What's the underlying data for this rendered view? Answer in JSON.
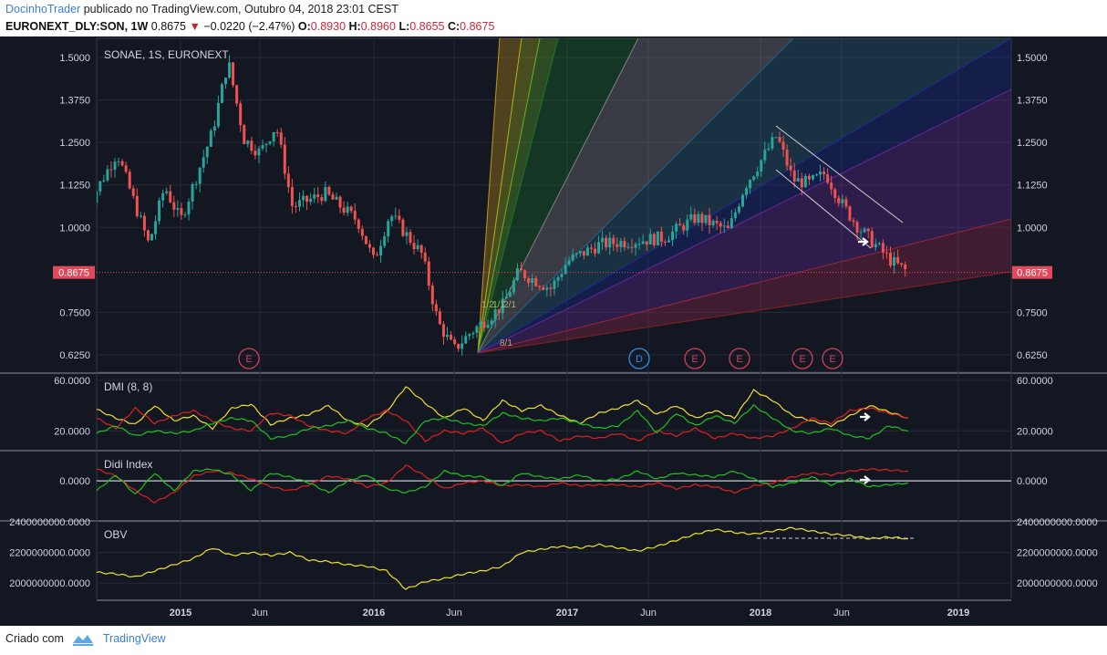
{
  "header": {
    "author": "DocinhoTrader",
    "published": "publicado no TradingView.com, Outubro 04, 2018 23:01 CEST",
    "symbol": "EURONEXT_DLY:SON, 1W",
    "last": "0.8675",
    "change": "−0.0220 (−2.47%)",
    "o_label": "O:",
    "o_val": "0.8930",
    "h_label": "H:",
    "h_val": "0.8960",
    "l_label": "L:",
    "l_val": "0.8655",
    "c_label": "C:",
    "c_val": "0.8675"
  },
  "footer": {
    "created": "Criado com",
    "brand": "TradingView"
  },
  "colors": {
    "background": "#131722",
    "up": "#26a69a",
    "down": "#ef5350",
    "price_tag": "#e04a5a",
    "dmi_plus": "#20c020",
    "dmi_minus": "#e02020",
    "adx": "#f0e030",
    "obv": "#f0e030"
  },
  "chart_data": [
    {
      "type": "candlestick",
      "title": "SONAE, 1S, EURONEXT",
      "x_ticks": [
        "2015",
        "Jun",
        "2016",
        "Jun",
        "2017",
        "Jun",
        "2018",
        "Jun",
        "2019"
      ],
      "y_ticks": [
        "1.5000",
        "1.3750",
        "1.2500",
        "1.1250",
        "1.0000",
        "0.7500",
        "0.6250"
      ],
      "ylim": [
        0.59,
        1.54
      ],
      "last_price_label": "0.8675",
      "price_path": [
        [
          "2014-07",
          1.05
        ],
        [
          "2014-09",
          1.22
        ],
        [
          "2014-11",
          0.95
        ],
        [
          "2014-12",
          1.12
        ],
        [
          "2015-01",
          1.02
        ],
        [
          "2015-02",
          1.15
        ],
        [
          "2015-03",
          1.28
        ],
        [
          "2015-04",
          1.49
        ],
        [
          "2015-05",
          1.26
        ],
        [
          "2015-06",
          1.22
        ],
        [
          "2015-07",
          1.3
        ],
        [
          "2015-08",
          1.06
        ],
        [
          "2015-10",
          1.1
        ],
        [
          "2015-12",
          1.02
        ],
        [
          "2016-01",
          0.9
        ],
        [
          "2016-02",
          1.04
        ],
        [
          "2016-04",
          0.92
        ],
        [
          "2016-05",
          0.72
        ],
        [
          "2016-06",
          0.64
        ],
        [
          "2016-07",
          0.69
        ],
        [
          "2016-09",
          0.77
        ],
        [
          "2016-10",
          0.87
        ],
        [
          "2016-12",
          0.82
        ],
        [
          "2017-01",
          0.9
        ],
        [
          "2017-03",
          0.95
        ],
        [
          "2017-05",
          0.96
        ],
        [
          "2017-07",
          0.97
        ],
        [
          "2017-09",
          1.03
        ],
        [
          "2017-11",
          0.99
        ],
        [
          "2017-12",
          1.12
        ],
        [
          "2018-02",
          1.27
        ],
        [
          "2018-03",
          1.14
        ],
        [
          "2018-04",
          1.13
        ],
        [
          "2018-05",
          1.16
        ],
        [
          "2018-06",
          1.07
        ],
        [
          "2018-07",
          1.0
        ],
        [
          "2018-08",
          0.95
        ],
        [
          "2018-09",
          0.9
        ],
        [
          "2018-10",
          0.8675
        ]
      ],
      "earnings_markers": [
        "E",
        "D",
        "E",
        "E",
        "E",
        "E"
      ],
      "fib_labels": [
        "1/2",
        "1/1",
        "2/1",
        "8/1"
      ]
    },
    {
      "type": "line",
      "title": "DMI (8, 8)",
      "y_ticks": [
        "60.0000",
        "20.0000"
      ],
      "ylim": [
        5,
        65
      ],
      "series": [
        {
          "color": "#f0e030",
          "values": [
            37,
            30,
            25,
            40,
            28,
            32,
            22,
            38,
            41,
            25,
            30,
            33,
            40,
            28,
            24,
            35,
            55,
            42,
            30,
            38,
            28,
            44,
            36,
            40,
            32,
            26,
            34,
            38,
            44,
            33,
            40,
            30,
            36,
            30,
            52,
            44,
            32,
            28,
            24,
            32,
            40,
            35,
            30
          ]
        },
        {
          "color": "#e02020",
          "values": [
            30,
            22,
            38,
            26,
            32,
            36,
            28,
            22,
            20,
            34,
            32,
            24,
            20,
            18,
            30,
            36,
            28,
            12,
            20,
            18,
            22,
            10,
            18,
            20,
            12,
            16,
            14,
            18,
            12,
            20,
            16,
            22,
            14,
            18,
            14,
            16,
            22,
            30,
            26,
            36,
            38,
            34,
            30
          ]
        },
        {
          "color": "#20c020",
          "values": [
            18,
            24,
            16,
            20,
            18,
            20,
            26,
            30,
            28,
            14,
            16,
            22,
            24,
            28,
            22,
            18,
            10,
            28,
            30,
            26,
            24,
            34,
            30,
            28,
            30,
            26,
            22,
            24,
            36,
            18,
            34,
            24,
            32,
            26,
            40,
            30,
            20,
            18,
            22,
            16,
            14,
            24,
            20
          ]
        }
      ]
    },
    {
      "type": "line",
      "title": "Didi Index",
      "y_ticks": [
        "0.0000"
      ],
      "ylim": [
        -0.4,
        0.3
      ],
      "series": [
        {
          "color": "#e02020",
          "values": [
            0.12,
            0.05,
            -0.1,
            -0.22,
            -0.12,
            0.05,
            0.1,
            0.08,
            0.02,
            -0.06,
            -0.1,
            -0.04,
            0.05,
            0.02,
            -0.06,
            -0.02,
            0.16,
            0.05,
            -0.08,
            -0.02,
            0.0,
            -0.05,
            -0.04,
            -0.06,
            -0.02,
            -0.05,
            -0.04,
            -0.04,
            -0.06,
            -0.02,
            -0.08,
            -0.04,
            -0.06,
            -0.12,
            -0.05,
            -0.02,
            0.04,
            0.08,
            0.06,
            0.1,
            0.12,
            0.11,
            0.1
          ]
        },
        {
          "color": "#20c020",
          "values": [
            -0.1,
            0.06,
            -0.14,
            0.08,
            -0.1,
            0.1,
            0.12,
            0.06,
            -0.1,
            0.08,
            0.04,
            -0.02,
            -0.12,
            0.0,
            0.06,
            -0.08,
            -0.12,
            -0.06,
            0.1,
            0.05,
            0.04,
            -0.05,
            0.08,
            0.04,
            0.02,
            0.06,
            0.0,
            0.02,
            0.1,
            0.02,
            0.08,
            0.06,
            0.04,
            0.1,
            0.02,
            -0.06,
            -0.02,
            0.04,
            -0.04,
            0.02,
            -0.06,
            -0.04,
            -0.02
          ]
        }
      ]
    },
    {
      "type": "line",
      "title": "OBV",
      "y_ticks": [
        "2400000000.0000",
        "2200000000.0000",
        "2000000000.0000"
      ],
      "ylim": [
        1900000000,
        2400000000
      ],
      "series": [
        {
          "color": "#f0e030",
          "values": [
            2070000000,
            2060000000,
            2040000000,
            2080000000,
            2120000000,
            2160000000,
            2230000000,
            2180000000,
            2200000000,
            2180000000,
            2200000000,
            2150000000,
            2140000000,
            2120000000,
            2110000000,
            2080000000,
            1960000000,
            2010000000,
            2030000000,
            2060000000,
            2080000000,
            2110000000,
            2200000000,
            2220000000,
            2240000000,
            2230000000,
            2250000000,
            2230000000,
            2210000000,
            2240000000,
            2280000000,
            2320000000,
            2350000000,
            2330000000,
            2320000000,
            2340000000,
            2360000000,
            2340000000,
            2320000000,
            2310000000,
            2290000000,
            2300000000,
            2290000000
          ]
        }
      ]
    }
  ]
}
